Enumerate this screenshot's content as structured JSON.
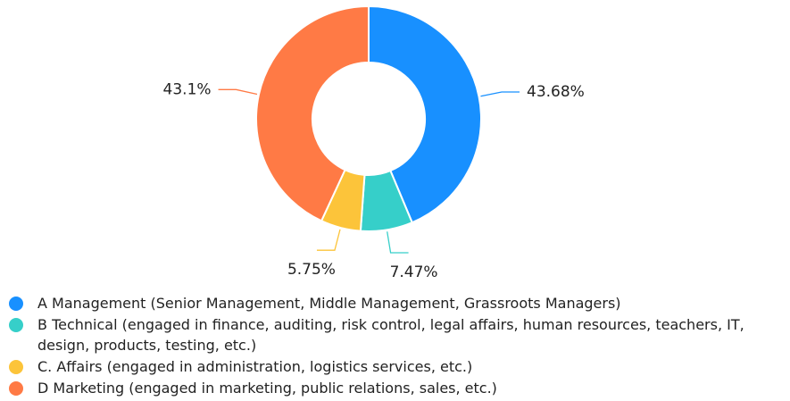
{
  "chart_data": {
    "type": "donut",
    "categories": [
      "A Management (Senior Management, Middle Management, Grassroots Managers)",
      "B Technical (engaged in finance, auditing, risk control, legal affairs, human resources, teachers, IT, design, products, testing, etc.)",
      "C. Affairs (engaged in administration, logistics services, etc.)",
      "D Marketing (engaged in marketing, public relations, sales, etc.)"
    ],
    "values": [
      43.68,
      7.47,
      5.75,
      43.1
    ],
    "value_labels": [
      "43.68%",
      "7.47%",
      "5.75%",
      "43.1%"
    ],
    "colors": [
      "#1890ff",
      "#36cfc9",
      "#fcc43a",
      "#ff7a45"
    ],
    "legend": "bottom-left"
  }
}
